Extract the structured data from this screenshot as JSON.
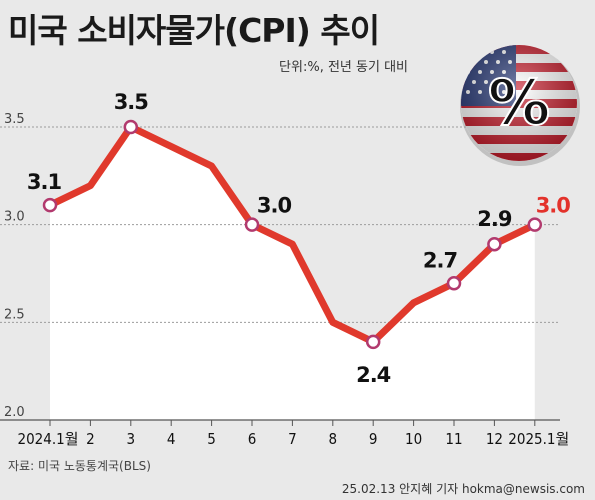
{
  "header": {
    "title": "미국 소비자물가(CPI) 추이",
    "unit_note": "단위:%, 전년 동기 대비"
  },
  "badge": {
    "icon": "us-flag-percent-icon",
    "symbol": "%"
  },
  "footer": {
    "source": "자료: 미국 노동통계국(BLS)",
    "credit": "25.02.13 안지혜 기자 hokma@newsis.com"
  },
  "colors": {
    "line": "#e0392c",
    "highlight": "#e3322b",
    "marker_stroke": "#b23a6e",
    "background": "#e9e9e9",
    "plot_fill": "#ffffff"
  },
  "chart_data": {
    "type": "line",
    "title": "미국 소비자물가(CPI) 추이",
    "categories": [
      "2024.1월",
      "2",
      "3",
      "4",
      "5",
      "6",
      "7",
      "8",
      "9",
      "10",
      "11",
      "12",
      "2025.1월"
    ],
    "values": [
      3.1,
      3.2,
      3.5,
      3.4,
      3.3,
      3.0,
      2.9,
      2.5,
      2.4,
      2.6,
      2.7,
      2.9,
      3.0
    ],
    "labeled_points": [
      {
        "index": 0,
        "label": "3.1"
      },
      {
        "index": 2,
        "label": "3.5"
      },
      {
        "index": 5,
        "label": "3.0"
      },
      {
        "index": 8,
        "label": "2.4"
      },
      {
        "index": 10,
        "label": "2.7"
      },
      {
        "index": 11,
        "label": "2.9"
      },
      {
        "index": 12,
        "label": "3.0",
        "highlight": true
      }
    ],
    "ylim": [
      2.0,
      3.5
    ],
    "yticks": [
      "2.0",
      "2.5",
      "3.0",
      "3.5"
    ],
    "xlabel": "",
    "ylabel": "",
    "grid": true
  }
}
